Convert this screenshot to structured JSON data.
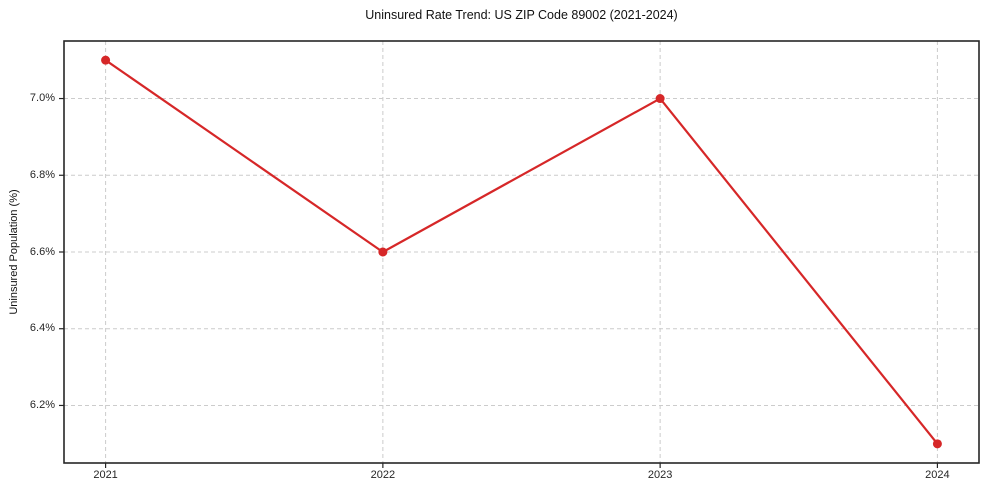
{
  "chart_data": {
    "type": "line",
    "title": "Uninsured Rate Trend: US ZIP Code 89002 (2021-2024)",
    "xlabel": "",
    "ylabel": "Uninsured Population (%)",
    "x": [
      2021,
      2022,
      2023,
      2024
    ],
    "values": [
      7.1,
      6.6,
      7.0,
      6.1
    ],
    "marker": "circle",
    "xlim": [
      2020.85,
      2024.15
    ],
    "ylim": [
      6.05,
      7.15
    ],
    "xticks": [
      2021,
      2022,
      2023,
      2024
    ],
    "xtick_labels": [
      "2021",
      "2022",
      "2023",
      "2024"
    ],
    "yticks": [
      6.2,
      6.4,
      6.6,
      6.8,
      7.0
    ],
    "ytick_labels": [
      "6.2%",
      "6.4%",
      "6.6%",
      "6.8%",
      "7.0%"
    ],
    "grid": true,
    "grid_style": "dashed",
    "legend": false
  },
  "colors": {
    "line": "#d62728",
    "grid": "#cccccc",
    "axis": "#262626",
    "text": "#111111",
    "background": "#ffffff"
  }
}
